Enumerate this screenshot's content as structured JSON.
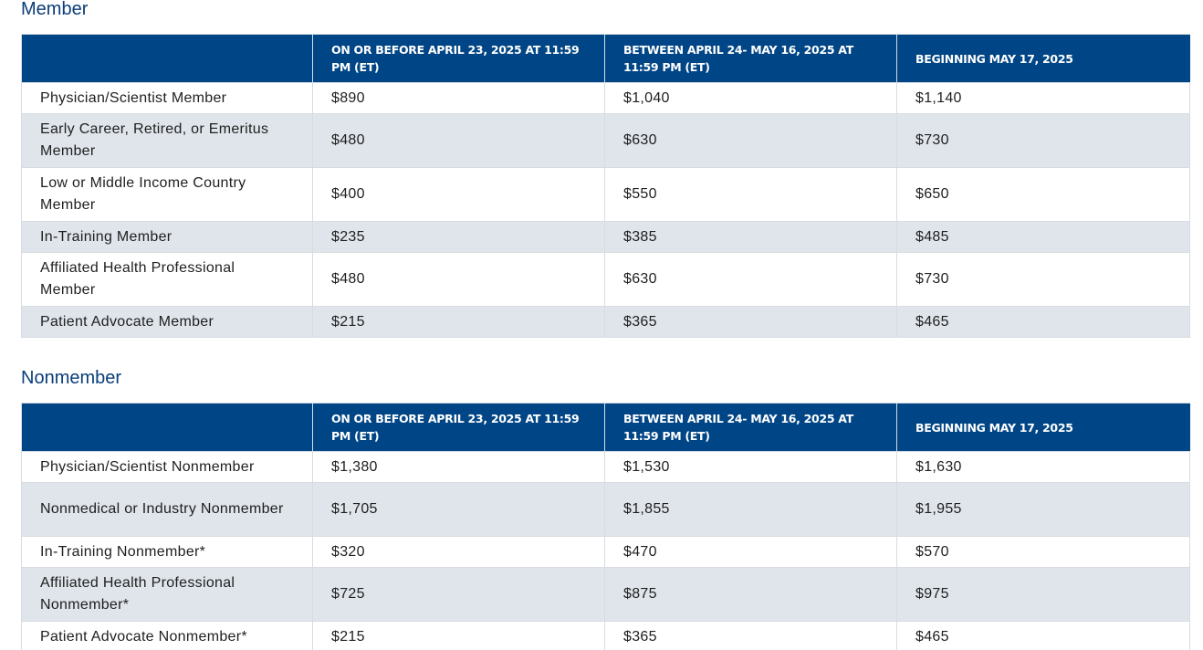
{
  "member": {
    "title": "Member",
    "headers": [
      "",
      "ON OR BEFORE APRIL 23, 2025 AT 11:59 PM (ET)",
      "BETWEEN APRIL 24- MAY 16, 2025 AT 11:59 PM (ET)",
      "BEGINNING MAY 17, 2025"
    ],
    "rows": [
      [
        "Physician/Scientist Member",
        "$890",
        "$1,040",
        "$1,140"
      ],
      [
        "Early Career, Retired, or Emeritus Member",
        "$480",
        "$630",
        "$730"
      ],
      [
        "Low or Middle Income Country Member",
        "$400",
        "$550",
        "$650"
      ],
      [
        "In-Training Member",
        "$235",
        "$385",
        "$485"
      ],
      [
        "Affiliated Health Professional Member",
        "$480",
        "$630",
        "$730"
      ],
      [
        "Patient Advocate Member",
        "$215",
        "$365",
        "$465"
      ]
    ]
  },
  "nonmember": {
    "title": "Nonmember",
    "headers": [
      "",
      "ON OR BEFORE APRIL 23, 2025 AT 11:59 PM (ET)",
      "BETWEEN APRIL 24- MAY 16, 2025 AT 11:59 PM (ET)",
      "BEGINNING MAY 17, 2025"
    ],
    "rows": [
      [
        "Physician/Scientist Nonmember",
        "$1,380",
        "$1,530",
        "$1,630"
      ],
      [
        "Nonmedical or Industry Nonmember",
        "$1,705",
        "$1,855",
        "$1,955"
      ],
      [
        "In-Training Nonmember*",
        "$320",
        "$470",
        "$570"
      ],
      [
        "Affiliated Health Professional Nonmember*",
        "$725",
        "$875",
        "$975"
      ],
      [
        "Patient Advocate Nonmember*",
        "$215",
        "$365",
        "$465"
      ]
    ]
  }
}
